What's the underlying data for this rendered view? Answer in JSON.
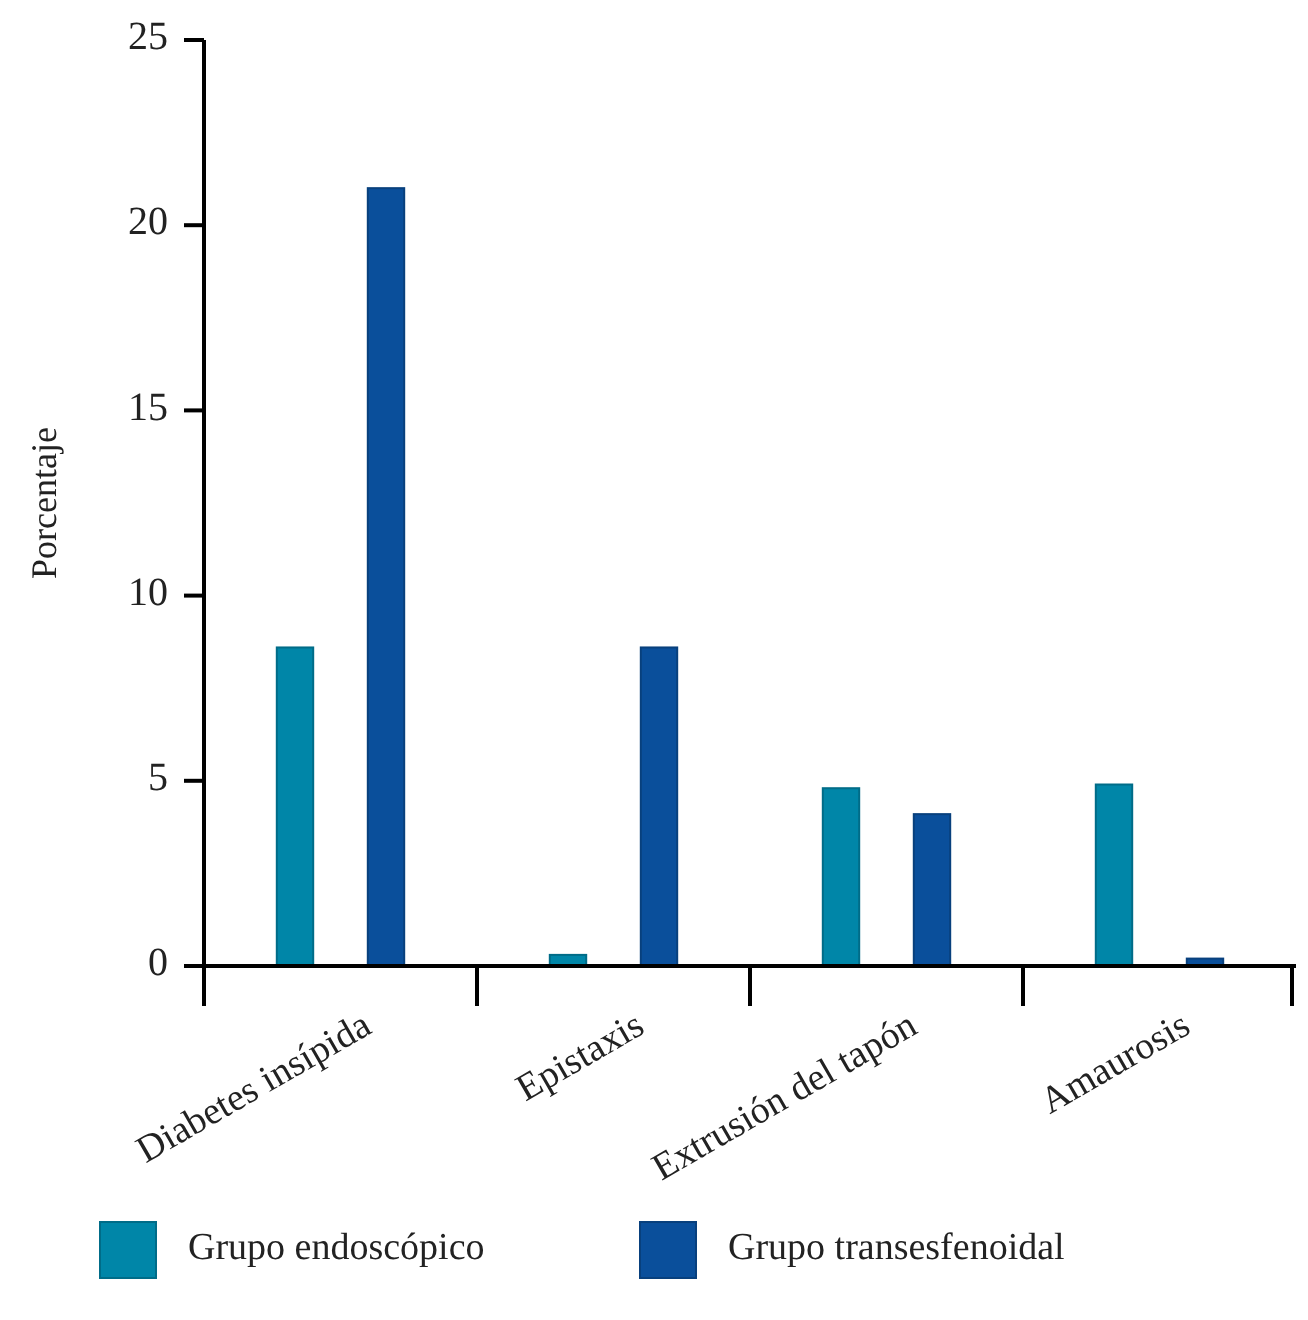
{
  "chart_data": {
    "type": "bar",
    "ylabel": "Porcentaje",
    "categories": [
      "Diabetes insípida",
      "Epistaxis",
      "Extrusión del tapón",
      "Amaurosis"
    ],
    "series": [
      {
        "name": "Grupo endoscópico",
        "color": "#0086a8",
        "values": [
          8.6,
          0.3,
          4.8,
          4.9
        ]
      },
      {
        "name": "Grupo transesfenoidal",
        "color": "#0a4f9b",
        "values": [
          21,
          8.6,
          4.1,
          0.2
        ]
      }
    ],
    "ylim": [
      0,
      25
    ],
    "yticks": [
      0,
      5,
      10,
      15,
      20,
      25
    ],
    "legend": "bottom",
    "grid": false
  }
}
